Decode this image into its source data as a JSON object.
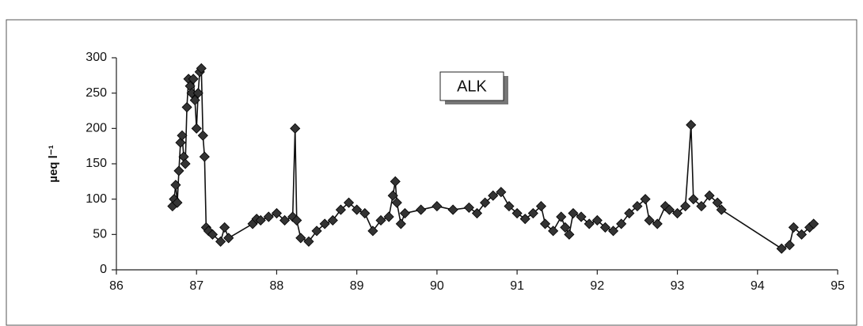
{
  "chart_data": {
    "type": "line",
    "ylabel": "µeq l⁻¹",
    "x": [
      86.7,
      86.72,
      86.74,
      86.76,
      86.78,
      86.8,
      86.82,
      86.84,
      86.86,
      86.88,
      86.9,
      86.92,
      86.94,
      86.96,
      86.98,
      87.0,
      87.02,
      87.04,
      87.06,
      87.08,
      87.1,
      87.12,
      87.15,
      87.2,
      87.3,
      87.35,
      87.4,
      87.7,
      87.75,
      87.8,
      87.9,
      88.0,
      88.1,
      88.2,
      88.23,
      88.25,
      88.3,
      88.4,
      88.5,
      88.6,
      88.7,
      88.8,
      88.9,
      89.0,
      89.1,
      89.2,
      89.3,
      89.4,
      89.45,
      89.48,
      89.5,
      89.55,
      89.6,
      89.8,
      90.0,
      90.2,
      90.4,
      90.5,
      90.6,
      90.7,
      90.8,
      90.9,
      91.0,
      91.1,
      91.2,
      91.3,
      91.35,
      91.45,
      91.55,
      91.6,
      91.65,
      91.7,
      91.8,
      91.9,
      92.0,
      92.1,
      92.2,
      92.3,
      92.4,
      92.5,
      92.6,
      92.65,
      92.75,
      92.85,
      92.9,
      93.0,
      93.1,
      93.17,
      93.2,
      93.3,
      93.4,
      93.5,
      93.55,
      94.3,
      94.4,
      94.45,
      94.55,
      94.65,
      94.7
    ],
    "series": [
      {
        "name": "ALK",
        "color": "#333333",
        "values": [
          90,
          100,
          120,
          95,
          140,
          180,
          190,
          160,
          150,
          230,
          270,
          260,
          250,
          270,
          240,
          200,
          250,
          280,
          285,
          190,
          160,
          60,
          55,
          50,
          40,
          60,
          45,
          65,
          72,
          70,
          75,
          80,
          70,
          75,
          200,
          70,
          45,
          40,
          55,
          65,
          70,
          85,
          95,
          85,
          80,
          55,
          70,
          75,
          105,
          125,
          95,
          65,
          80,
          85,
          90,
          85,
          88,
          80,
          95,
          105,
          110,
          90,
          80,
          72,
          80,
          90,
          65,
          55,
          75,
          60,
          50,
          80,
          75,
          65,
          70,
          60,
          55,
          65,
          80,
          90,
          100,
          70,
          65,
          90,
          85,
          80,
          90,
          205,
          100,
          90,
          105,
          95,
          85,
          30,
          35,
          60,
          50,
          60,
          65
        ]
      }
    ],
    "xlim": [
      86,
      95
    ],
    "xticks": [
      86,
      87,
      88,
      89,
      90,
      91,
      92,
      93,
      94,
      95
    ],
    "ylim": [
      0,
      300
    ],
    "yticks": [
      0,
      50,
      100,
      150,
      200,
      250,
      300
    ]
  }
}
